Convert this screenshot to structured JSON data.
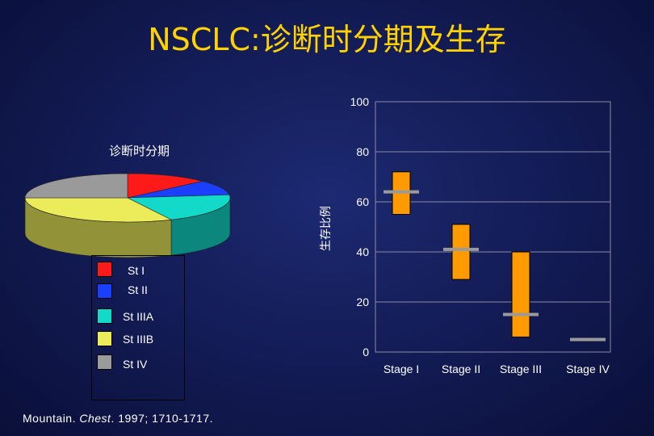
{
  "title": "NSCLC:诊断时分期及生存",
  "pie": {
    "title": "诊断时分期",
    "legend": [
      {
        "label": "St I",
        "color": "#ff1a1a"
      },
      {
        "label": "St II",
        "color": "#1a3fff"
      },
      {
        "label": "St IIIA",
        "color": "#13d9c9"
      },
      {
        "label": "St IIIB",
        "color": "#ecec5a"
      },
      {
        "label": "St IV",
        "color": "#9a9a9a"
      }
    ]
  },
  "citation": {
    "author": "Mountain.",
    "journal": "Chest",
    "details": ". 1997; 1710-1717."
  },
  "chart_data": [
    {
      "type": "pie",
      "title": "诊断时分期",
      "labels": [
        "St I",
        "St II",
        "St IIIA",
        "St IIIB",
        "St IV"
      ],
      "values": [
        13,
        10,
        20,
        32,
        25
      ],
      "colors": [
        "#ff1a1a",
        "#1a3fff",
        "#13d9c9",
        "#ecec5a",
        "#9a9a9a"
      ],
      "legend": "bottom-left"
    },
    {
      "type": "range-bar",
      "ylabel": "生存比例",
      "categories": [
        "Stage I",
        "Stage II",
        "Stage III",
        "Stage IV"
      ],
      "ranges": [
        [
          55,
          72
        ],
        [
          29,
          51
        ],
        [
          6,
          40
        ],
        [
          null,
          null
        ]
      ],
      "medians": [
        64,
        41,
        15,
        5
      ],
      "ylim": [
        0,
        100
      ],
      "yticks": [
        0,
        20,
        40,
        60,
        80,
        100
      ],
      "bar_color": "#ff9a00",
      "median_color": "#9a9a9a",
      "grid": true
    }
  ]
}
